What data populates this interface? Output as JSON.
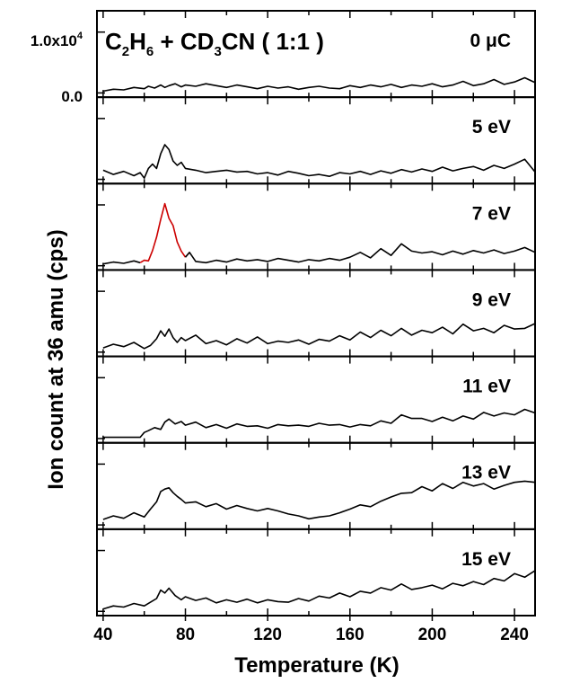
{
  "chart_data": {
    "type": "line",
    "title_parts": {
      "a": "C",
      "a_sub": "2",
      "b": "H",
      "b_sub": "6",
      "c": " + CD",
      "c_sub": "3",
      "d": "CN ( 1:1 )"
    },
    "xlabel": "Temperature (K)",
    "ylabel": "Ion count at 36 amu (cps)",
    "xlim": [
      37,
      250
    ],
    "ylim": [
      -700,
      13500
    ],
    "x_ticks": [
      "40",
      "80",
      "120",
      "160",
      "200",
      "240"
    ],
    "y_ticks_top_panel": {
      "upper": {
        "base": "1.0x10",
        "exp": "4"
      },
      "lower": "0.0"
    },
    "grid": false,
    "colors": {
      "line": "#000000",
      "highlight": "#cc0000"
    },
    "panels": [
      {
        "label": "0 μC",
        "series": [
          {
            "x": [
              40,
              45,
              50,
              55,
              60,
              62,
              65,
              68,
              70,
              72,
              75,
              78,
              80,
              85,
              90,
              95,
              100,
              105,
              110,
              115,
              120,
              125,
              130,
              135,
              140,
              145,
              150,
              155,
              160,
              165,
              170,
              175,
              180,
              185,
              190,
              195,
              200,
              205,
              210,
              215,
              220,
              225,
              230,
              235,
              240,
              245,
              250
            ],
            "values": [
              300,
              600,
              500,
              900,
              700,
              1100,
              800,
              1300,
              900,
              1200,
              1500,
              1000,
              1300,
              1100,
              1500,
              1200,
              900,
              1300,
              1000,
              700,
              1100,
              800,
              1000,
              600,
              900,
              1100,
              800,
              700,
              1200,
              900,
              1300,
              1000,
              1400,
              900,
              1300,
              1100,
              1500,
              1000,
              1300,
              1900,
              1200,
              1500,
              2200,
              1400,
              1800,
              2500,
              1700
            ]
          }
        ]
      },
      {
        "label": "5 eV",
        "series": [
          {
            "x": [
              40,
              45,
              50,
              55,
              58,
              60,
              62,
              64,
              66,
              68,
              70,
              72,
              74,
              76,
              78,
              80,
              85,
              90,
              95,
              100,
              105,
              110,
              115,
              120,
              125,
              130,
              135,
              140,
              145,
              150,
              155,
              160,
              165,
              170,
              175,
              180,
              185,
              190,
              195,
              200,
              205,
              210,
              215,
              220,
              225,
              230,
              235,
              240,
              245,
              250
            ],
            "values": [
              1500,
              800,
              1300,
              600,
              1100,
              200,
              1800,
              2500,
              1800,
              4200,
              5700,
              4900,
              3000,
              2300,
              2800,
              1800,
              1500,
              1100,
              1300,
              1500,
              1200,
              1300,
              900,
              1100,
              700,
              1300,
              1000,
              600,
              800,
              500,
              1100,
              900,
              1300,
              800,
              1400,
              1000,
              1600,
              1200,
              1700,
              1300,
              2000,
              1400,
              1800,
              2100,
              1500,
              2300,
              1800,
              2500,
              3300,
              1200
            ]
          }
        ]
      },
      {
        "label": "7 eV",
        "series": [
          {
            "x": [
              40,
              45,
              50,
              55,
              58
            ],
            "values": [
              300,
              600,
              400,
              800,
              500
            ]
          },
          {
            "x": [
              58,
              60,
              62,
              64,
              66,
              68,
              70,
              72,
              74,
              76,
              78,
              80
            ],
            "values": [
              500,
              900,
              800,
              2500,
              4700,
              7600,
              10200,
              7800,
              6600,
              3900,
              2400,
              1400
            ]
          },
          {
            "x": [
              80,
              82,
              85,
              90,
              95,
              100,
              105,
              110,
              115,
              120,
              125,
              130,
              135,
              140,
              145,
              150,
              155,
              160,
              165,
              170,
              175,
              180,
              185,
              190,
              195,
              200,
              205,
              210,
              215,
              220,
              225,
              230,
              235,
              240,
              245,
              250
            ],
            "values": [
              1400,
              2200,
              700,
              500,
              900,
              600,
              1100,
              800,
              1000,
              700,
              1200,
              900,
              600,
              1000,
              800,
              1200,
              900,
              1400,
              2200,
              1300,
              2800,
              1700,
              3600,
              2400,
              2100,
              2300,
              1800,
              2400,
              1900,
              2500,
              2100,
              2600,
              2000,
              2400,
              3000,
              2200
            ]
          }
        ]
      },
      {
        "label": "9 eV",
        "series": [
          {
            "x": [
              40,
              45,
              50,
              55,
              60,
              63,
              66,
              68,
              70,
              72,
              74,
              76,
              78,
              80,
              85,
              90,
              95,
              100,
              105,
              110,
              115,
              120,
              125,
              130,
              135,
              140,
              145,
              150,
              155,
              160,
              165,
              170,
              175,
              180,
              185,
              190,
              195,
              200,
              205,
              210,
              215,
              220,
              225,
              230,
              235,
              240,
              245,
              250
            ],
            "values": [
              700,
              1300,
              900,
              1600,
              600,
              1100,
              2200,
              3500,
              2600,
              3800,
              2400,
              1600,
              2400,
              1900,
              2800,
              1400,
              1900,
              1200,
              2200,
              1500,
              2500,
              1400,
              1800,
              1600,
              2000,
              1300,
              2100,
              1800,
              2700,
              2000,
              3300,
              2400,
              3600,
              2700,
              3900,
              2800,
              3600,
              3200,
              4100,
              3000,
              4600,
              3500,
              3900,
              3200,
              4400,
              3800,
              3900,
              4700
            ]
          }
        ]
      },
      {
        "label": "11 eV",
        "series": [
          {
            "x": [
              40,
              45,
              50,
              55,
              58,
              60,
              62,
              65,
              68,
              70,
              72,
              75,
              78,
              80,
              85,
              90,
              95,
              100,
              105,
              110,
              115,
              120,
              125,
              130,
              135,
              140,
              145,
              150,
              155,
              160,
              165,
              170,
              175,
              180,
              185,
              190,
              195,
              200,
              205,
              210,
              215,
              220,
              225,
              230,
              235,
              240,
              245,
              250
            ],
            "values": [
              200,
              200,
              200,
              200,
              200,
              1000,
              1300,
              1800,
              1500,
              2700,
              3200,
              2400,
              2800,
              2200,
              2700,
              1800,
              2300,
              1700,
              2400,
              2000,
              2100,
              1700,
              2300,
              2100,
              2200,
              2000,
              2500,
              2200,
              2300,
              1900,
              2300,
              2100,
              2900,
              2500,
              3900,
              3300,
              3300,
              2800,
              3500,
              2900,
              3700,
              3200,
              4300,
              3700,
              4200,
              3900,
              4800,
              4200
            ]
          }
        ]
      },
      {
        "label": "13 eV",
        "series": [
          {
            "x": [
              40,
              45,
              50,
              55,
              60,
              63,
              66,
              68,
              70,
              72,
              74,
              76,
              78,
              80,
              85,
              90,
              95,
              100,
              105,
              110,
              115,
              120,
              125,
              130,
              135,
              140,
              145,
              150,
              155,
              160,
              165,
              170,
              175,
              180,
              185,
              190,
              195,
              200,
              205,
              210,
              215,
              220,
              225,
              230,
              235,
              240,
              245,
              250
            ],
            "values": [
              900,
              1500,
              1100,
              2000,
              1300,
              2600,
              3800,
              5500,
              5900,
              6100,
              5300,
              4700,
              4200,
              3600,
              3800,
              3000,
              3500,
              2600,
              3200,
              2700,
              2300,
              2700,
              2300,
              1800,
              1500,
              1000,
              1300,
              1500,
              2000,
              2600,
              3300,
              3000,
              3900,
              4600,
              5200,
              5300,
              6300,
              5600,
              6800,
              6000,
              7000,
              6400,
              6800,
              5900,
              6500,
              7000,
              7200,
              7000
            ]
          }
        ]
      },
      {
        "label": "15 eV",
        "series": [
          {
            "x": [
              40,
              45,
              50,
              55,
              60,
              63,
              66,
              68,
              70,
              72,
              75,
              78,
              80,
              85,
              90,
              95,
              100,
              105,
              110,
              115,
              120,
              125,
              130,
              135,
              140,
              145,
              150,
              155,
              160,
              165,
              170,
              175,
              180,
              185,
              190,
              195,
              200,
              205,
              210,
              215,
              220,
              225,
              230,
              235,
              240,
              245,
              250
            ],
            "values": [
              400,
              900,
              700,
              1300,
              900,
              1500,
              2100,
              3500,
              3000,
              3800,
              2600,
              1900,
              2400,
              1800,
              2200,
              1400,
              1900,
              1500,
              2000,
              1400,
              1900,
              1600,
              1500,
              2100,
              1700,
              2500,
              2200,
              3000,
              2400,
              3300,
              3000,
              3900,
              3500,
              4500,
              3600,
              3900,
              4300,
              3700,
              4600,
              4200,
              4900,
              4400,
              5400,
              5000,
              6200,
              5600,
              6700
            ]
          }
        ]
      }
    ]
  }
}
